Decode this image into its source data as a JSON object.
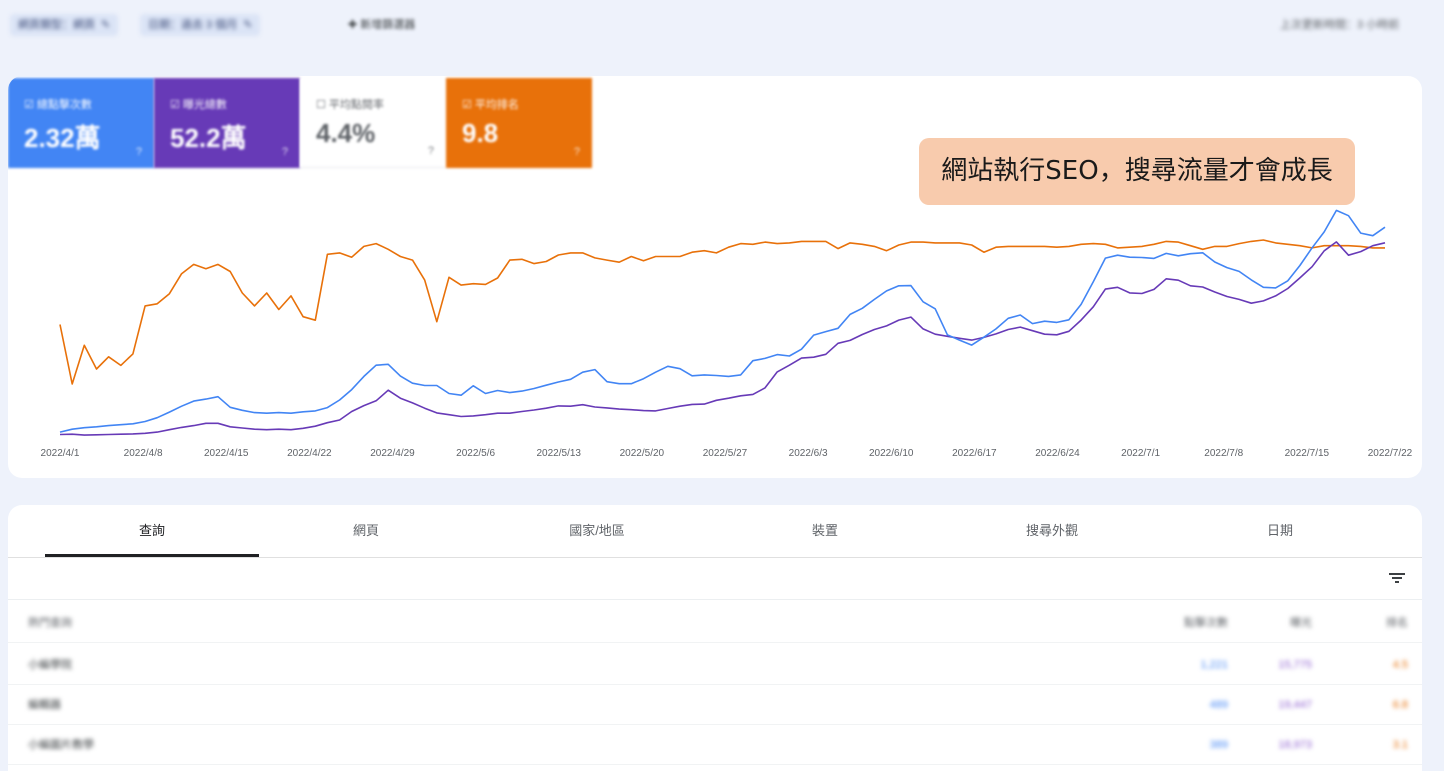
{
  "topbar": {
    "chips": [
      {
        "label": "網頁類型：網頁"
      },
      {
        "label": "日期：過去 3 個月"
      }
    ],
    "type_filter": "新增篩選器",
    "right": "上次更新時間：3 小時前"
  },
  "metrics": [
    {
      "label": "總點擊次數",
      "value": "2.32萬",
      "color": "#4285f4"
    },
    {
      "label": "曝光總數",
      "value": "52.2萬",
      "color": "#673ab7"
    },
    {
      "label": "平均點閱率",
      "value": "4.4%",
      "color": "#5f6368"
    },
    {
      "label": "平均排名",
      "value": "9.8",
      "color": "#e8710a"
    }
  ],
  "callout": "網站執行SEO，搜尋流量才會成長",
  "chart_data": {
    "type": "line",
    "x_labels": [
      "2022/4/1",
      "2022/4/8",
      "2022/4/15",
      "2022/4/22",
      "2022/4/29",
      "2022/5/6",
      "2022/5/13",
      "2022/5/20",
      "2022/5/27",
      "2022/6/3",
      "2022/6/10",
      "2022/6/17",
      "2022/6/24",
      "2022/7/1",
      "2022/7/8",
      "2022/7/15",
      "2022/7/22"
    ],
    "grid": false,
    "legend": "none",
    "series": [
      {
        "color": "#e8710a",
        "values": [
          69.6,
          61.3,
          66.7,
          63.4,
          65.1,
          63.9,
          65.5,
          72.2,
          72.5,
          73.9,
          76.7,
          78.0,
          77.4,
          78.0,
          77.0,
          74.0,
          72.2,
          74.0,
          71.7,
          73.6,
          70.7,
          70.2,
          79.4,
          79.6,
          79.0,
          80.5,
          80.9,
          80.1,
          79.1,
          78.6,
          75.8,
          70.0,
          76.2,
          75.1,
          75.3,
          75.2,
          76.1,
          78.6,
          78.7,
          78.1,
          78.4,
          79.3,
          79.6,
          79.6,
          78.9,
          78.6,
          78.3,
          79.1,
          78.5,
          79.1,
          79.1,
          79.1,
          79.7,
          79.9,
          79.6,
          80.4,
          80.9,
          80.8,
          81.1,
          80.9,
          81.0,
          81.2,
          81.2,
          81.2,
          80.2,
          81.0,
          80.8,
          80.5,
          79.9,
          80.7,
          81.1,
          81.1,
          81.0,
          81.0,
          81.0,
          80.7,
          79.7,
          80.4,
          80.5,
          80.5,
          80.5,
          80.5,
          80.4,
          80.5,
          80.8,
          80.9,
          80.8,
          80.3,
          80.4,
          80.5,
          80.8,
          81.2,
          81.1,
          80.6,
          80.1,
          80.5,
          80.5,
          80.9,
          81.2,
          81.4,
          81.0,
          80.8,
          80.6,
          80.3,
          80.6,
          80.6,
          80.6,
          80.5,
          80.3,
          80.3
        ]
      },
      {
        "color": "#4285f4",
        "values": [
          200,
          300,
          350,
          380,
          420,
          450,
          480,
          560,
          690,
          880,
          1080,
          1250,
          1320,
          1400,
          1040,
          940,
          860,
          840,
          860,
          840,
          890,
          920,
          1030,
          1290,
          1640,
          2090,
          2470,
          2500,
          2100,
          1860,
          1780,
          1780,
          1510,
          1450,
          1770,
          1510,
          1610,
          1540,
          1590,
          1680,
          1790,
          1900,
          1990,
          2230,
          2320,
          1910,
          1840,
          1840,
          2010,
          2230,
          2430,
          2350,
          2110,
          2140,
          2120,
          2090,
          2140,
          2620,
          2700,
          2830,
          2780,
          3010,
          3490,
          3610,
          3720,
          4190,
          4400,
          4700,
          4990,
          5160,
          5170,
          4620,
          4380,
          3500,
          3320,
          3150,
          3420,
          3700,
          4060,
          4170,
          3880,
          3960,
          3920,
          4010,
          4530,
          5300,
          6100,
          6200,
          6130,
          6120,
          6090,
          6260,
          6180,
          6250,
          6280,
          5970,
          5780,
          5650,
          5360,
          5110,
          5090,
          5330,
          5850,
          6450,
          6990,
          7720,
          7540,
          6950,
          6860,
          7150
        ]
      }
    ],
    "series_overlay": [
      {
        "color": "#673ab7",
        "values": [
          120,
          130,
          100,
          110,
          120,
          130,
          140,
          160,
          200,
          280,
          360,
          420,
          500,
          500,
          380,
          340,
          300,
          280,
          300,
          280,
          330,
          400,
          520,
          610,
          900,
          1100,
          1260,
          1620,
          1350,
          1190,
          1010,
          850,
          790,
          730,
          750,
          790,
          840,
          840,
          900,
          950,
          1010,
          1090,
          1080,
          1130,
          1050,
          1020,
          980,
          960,
          930,
          920,
          1000,
          1080,
          1140,
          1150,
          1280,
          1350,
          1430,
          1480,
          1700,
          2240,
          2470,
          2710,
          2740,
          2840,
          3210,
          3310,
          3510,
          3680,
          3800,
          4000,
          4100,
          3700,
          3520,
          3450,
          3380,
          3320,
          3410,
          3530,
          3680,
          3760,
          3640,
          3520,
          3500,
          3620,
          4000,
          4450,
          5050,
          5110,
          4920,
          4900,
          5040,
          5400,
          5350,
          5160,
          5120,
          4950,
          4800,
          4700,
          4570,
          4650,
          4820,
          5070,
          5430,
          5810,
          6350,
          6650,
          6200,
          6320,
          6520,
          6620
        ]
      }
    ],
    "tracked_series": [
      "clicks",
      "impressions",
      "position"
    ]
  },
  "tabs": [
    "查詢",
    "網頁",
    "國家/地區",
    "裝置",
    "搜尋外觀",
    "日期"
  ],
  "active_tab": "查詢",
  "table": {
    "headers": {
      "query": "熱門查詢",
      "clicks": "點擊次數",
      "impressions": "曝光",
      "position": "排名"
    },
    "rows": [
      {
        "query": "小編學院",
        "clicks": "1,221",
        "impressions": "15,775",
        "position": "4.5"
      },
      {
        "query": "編輯器",
        "clicks": "489",
        "impressions": "19,447",
        "position": "6.8"
      },
      {
        "query": "小編圖片教學",
        "clicks": "389",
        "impressions": "18,973",
        "position": "3.1"
      }
    ]
  }
}
